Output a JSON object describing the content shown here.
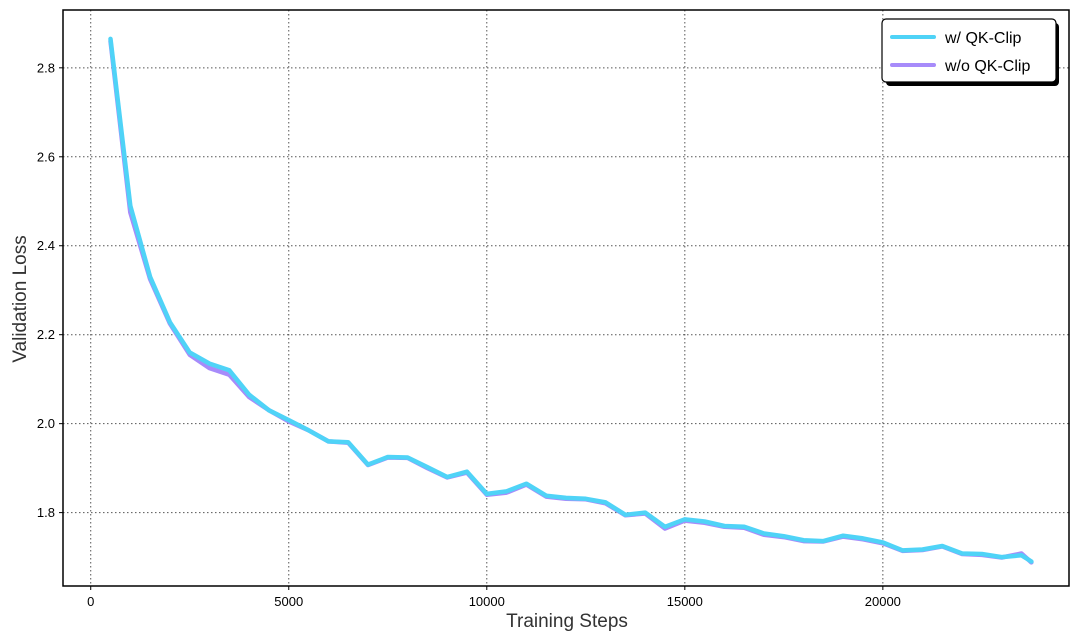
{
  "chart_data": {
    "type": "line",
    "xlabel": "Training Steps",
    "ylabel": "Validation Loss",
    "xlim": [
      -700,
      24700
    ],
    "ylim": [
      1.635,
      2.93
    ],
    "xticks": [
      0,
      5000,
      10000,
      15000,
      20000
    ],
    "yticks": [
      1.8,
      2.0,
      2.2,
      2.4,
      2.6,
      2.8
    ],
    "xtick_labels": [
      "0",
      "5000",
      "10000",
      "15000",
      "20000"
    ],
    "ytick_labels": [
      "1.8",
      "2.0",
      "2.2",
      "2.4",
      "2.6",
      "2.8"
    ],
    "grid": true,
    "legend_position": "top-right",
    "series": [
      {
        "name": "w/ QK-Clip",
        "color": "#4fd3f7",
        "x": [
          500,
          1000,
          1500,
          2000,
          2500,
          3000,
          3500,
          4000,
          4500,
          5000,
          5500,
          6000,
          6500,
          7000,
          7500,
          8000,
          8500,
          9000,
          9500,
          10000,
          10500,
          11000,
          11500,
          12000,
          12500,
          13000,
          13500,
          14000,
          14500,
          15000,
          15500,
          16000,
          16500,
          17000,
          17500,
          18000,
          18500,
          19000,
          19500,
          20000,
          20500,
          21000,
          21500,
          22000,
          22500,
          23000,
          23500,
          23750
        ],
        "y": [
          2.865,
          2.49,
          2.33,
          2.228,
          2.16,
          2.135,
          2.12,
          2.065,
          2.03,
          2.008,
          1.985,
          1.96,
          1.958,
          1.908,
          1.925,
          1.924,
          1.902,
          1.88,
          1.892,
          1.842,
          1.848,
          1.865,
          1.838,
          1.833,
          1.831,
          1.823,
          1.795,
          1.8,
          1.768,
          1.785,
          1.78,
          1.77,
          1.768,
          1.753,
          1.747,
          1.738,
          1.736,
          1.748,
          1.742,
          1.733,
          1.715,
          1.717,
          1.725,
          1.708,
          1.707,
          1.7,
          1.704,
          1.69
        ]
      },
      {
        "name": "w/o QK-Clip",
        "color": "#a78bfa",
        "x": [
          500,
          1000,
          1500,
          2000,
          2500,
          3000,
          3500,
          4000,
          4500,
          5000,
          5500,
          6000,
          6500,
          7000,
          7500,
          8000,
          8500,
          9000,
          9500,
          10000,
          10500,
          11000,
          11500,
          12000,
          12500,
          13000,
          13500,
          14000,
          14500,
          15000,
          15500,
          16000,
          16500,
          17000,
          17500,
          18000,
          18500,
          19000,
          19500,
          20000,
          20500,
          21000,
          21500,
          22000,
          22500,
          23000,
          23500,
          23750
        ],
        "y": [
          2.86,
          2.475,
          2.325,
          2.225,
          2.155,
          2.125,
          2.11,
          2.06,
          2.03,
          2.005,
          1.985,
          1.96,
          1.957,
          1.907,
          1.924,
          1.923,
          1.9,
          1.879,
          1.89,
          1.84,
          1.845,
          1.863,
          1.836,
          1.831,
          1.83,
          1.821,
          1.794,
          1.798,
          1.764,
          1.782,
          1.777,
          1.768,
          1.766,
          1.75,
          1.745,
          1.736,
          1.735,
          1.746,
          1.74,
          1.731,
          1.714,
          1.716,
          1.724,
          1.707,
          1.705,
          1.699,
          1.708,
          1.688
        ]
      }
    ]
  }
}
